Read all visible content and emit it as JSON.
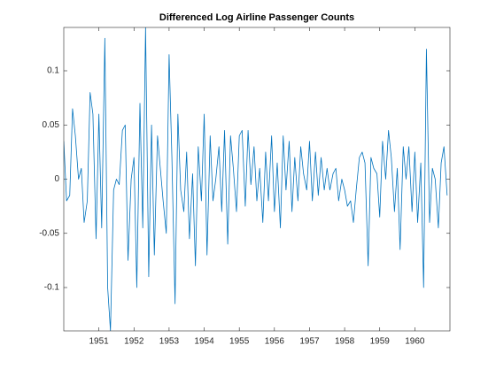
{
  "chart_data": {
    "type": "line",
    "title": "Differenced Log Airline Passenger Counts",
    "x": [
      1950.0,
      1950.08,
      1950.17,
      1950.25,
      1950.33,
      1950.42,
      1950.5,
      1950.58,
      1950.67,
      1950.75,
      1950.83,
      1950.92,
      1951.0,
      1951.08,
      1951.17,
      1951.25,
      1951.33,
      1951.42,
      1951.5,
      1951.58,
      1951.67,
      1951.75,
      1951.83,
      1951.92,
      1952.0,
      1952.08,
      1952.17,
      1952.25,
      1952.33,
      1952.42,
      1952.5,
      1952.58,
      1952.67,
      1952.75,
      1952.83,
      1952.92,
      1953.0,
      1953.08,
      1953.17,
      1953.25,
      1953.33,
      1953.42,
      1953.5,
      1953.58,
      1953.67,
      1953.75,
      1953.83,
      1953.92,
      1954.0,
      1954.08,
      1954.17,
      1954.25,
      1954.33,
      1954.42,
      1954.5,
      1954.58,
      1954.67,
      1954.75,
      1954.83,
      1954.92,
      1955.0,
      1955.08,
      1955.17,
      1955.25,
      1955.33,
      1955.42,
      1955.5,
      1955.58,
      1955.67,
      1955.75,
      1955.83,
      1955.92,
      1956.0,
      1956.08,
      1956.17,
      1956.25,
      1956.33,
      1956.42,
      1956.5,
      1956.58,
      1956.67,
      1956.75,
      1956.83,
      1956.92,
      1957.0,
      1957.08,
      1957.17,
      1957.25,
      1957.33,
      1957.42,
      1957.5,
      1957.58,
      1957.67,
      1957.75,
      1957.83,
      1957.92,
      1958.0,
      1958.08,
      1958.17,
      1958.25,
      1958.33,
      1958.42,
      1958.5,
      1958.58,
      1958.67,
      1958.75,
      1958.83,
      1958.92,
      1959.0,
      1959.08,
      1959.17,
      1959.25,
      1959.33,
      1959.42,
      1959.5,
      1959.58,
      1959.67,
      1959.75,
      1959.83,
      1959.92,
      1960.0,
      1960.08,
      1960.17,
      1960.25,
      1960.33,
      1960.42,
      1960.5,
      1960.58,
      1960.67,
      1960.75,
      1960.83,
      1960.92
    ],
    "series": [
      {
        "color": "#0072BD",
        "values": [
          0.035,
          -0.02,
          -0.015,
          0.065,
          0.04,
          0.0,
          0.01,
          -0.04,
          -0.02,
          0.08,
          0.06,
          -0.055,
          0.06,
          -0.045,
          0.13,
          -0.1,
          -0.14,
          -0.01,
          0.0,
          -0.005,
          0.045,
          0.05,
          -0.075,
          0.0,
          0.02,
          -0.1,
          0.07,
          -0.045,
          0.14,
          -0.09,
          0.05,
          -0.07,
          0.04,
          0.01,
          -0.02,
          -0.05,
          0.115,
          0.02,
          -0.115,
          0.06,
          -0.01,
          -0.03,
          0.025,
          -0.055,
          0.005,
          -0.08,
          0.03,
          -0.02,
          0.06,
          -0.07,
          0.04,
          -0.02,
          0.0,
          0.03,
          -0.03,
          0.045,
          -0.06,
          0.04,
          0.01,
          -0.03,
          0.04,
          0.045,
          -0.025,
          0.045,
          -0.005,
          0.03,
          -0.02,
          0.01,
          -0.04,
          0.025,
          -0.02,
          0.04,
          -0.03,
          0.015,
          -0.045,
          0.04,
          -0.01,
          0.035,
          -0.03,
          0.02,
          -0.02,
          0.03,
          0.005,
          -0.01,
          0.035,
          -0.02,
          0.025,
          -0.015,
          0.02,
          -0.01,
          0.01,
          -0.01,
          0.005,
          0.01,
          -0.02,
          0.0,
          -0.01,
          -0.025,
          -0.02,
          -0.04,
          -0.01,
          0.02,
          0.025,
          0.015,
          -0.08,
          0.02,
          0.01,
          0.005,
          -0.035,
          0.035,
          0.0,
          0.045,
          0.02,
          -0.03,
          0.01,
          -0.065,
          0.03,
          0.0,
          0.03,
          -0.03,
          0.025,
          -0.04,
          0.015,
          -0.1,
          0.12,
          -0.04,
          0.01,
          0.0,
          -0.045,
          0.015,
          0.03,
          -0.015
        ]
      }
    ],
    "xlim": [
      1950,
      1961
    ],
    "xticks": [
      1951,
      1952,
      1953,
      1954,
      1955,
      1956,
      1957,
      1958,
      1959,
      1960
    ],
    "ylim": [
      -0.14,
      0.14
    ],
    "yticks": [
      -0.1,
      -0.05,
      0,
      0.05,
      0.1
    ],
    "grid": false
  }
}
